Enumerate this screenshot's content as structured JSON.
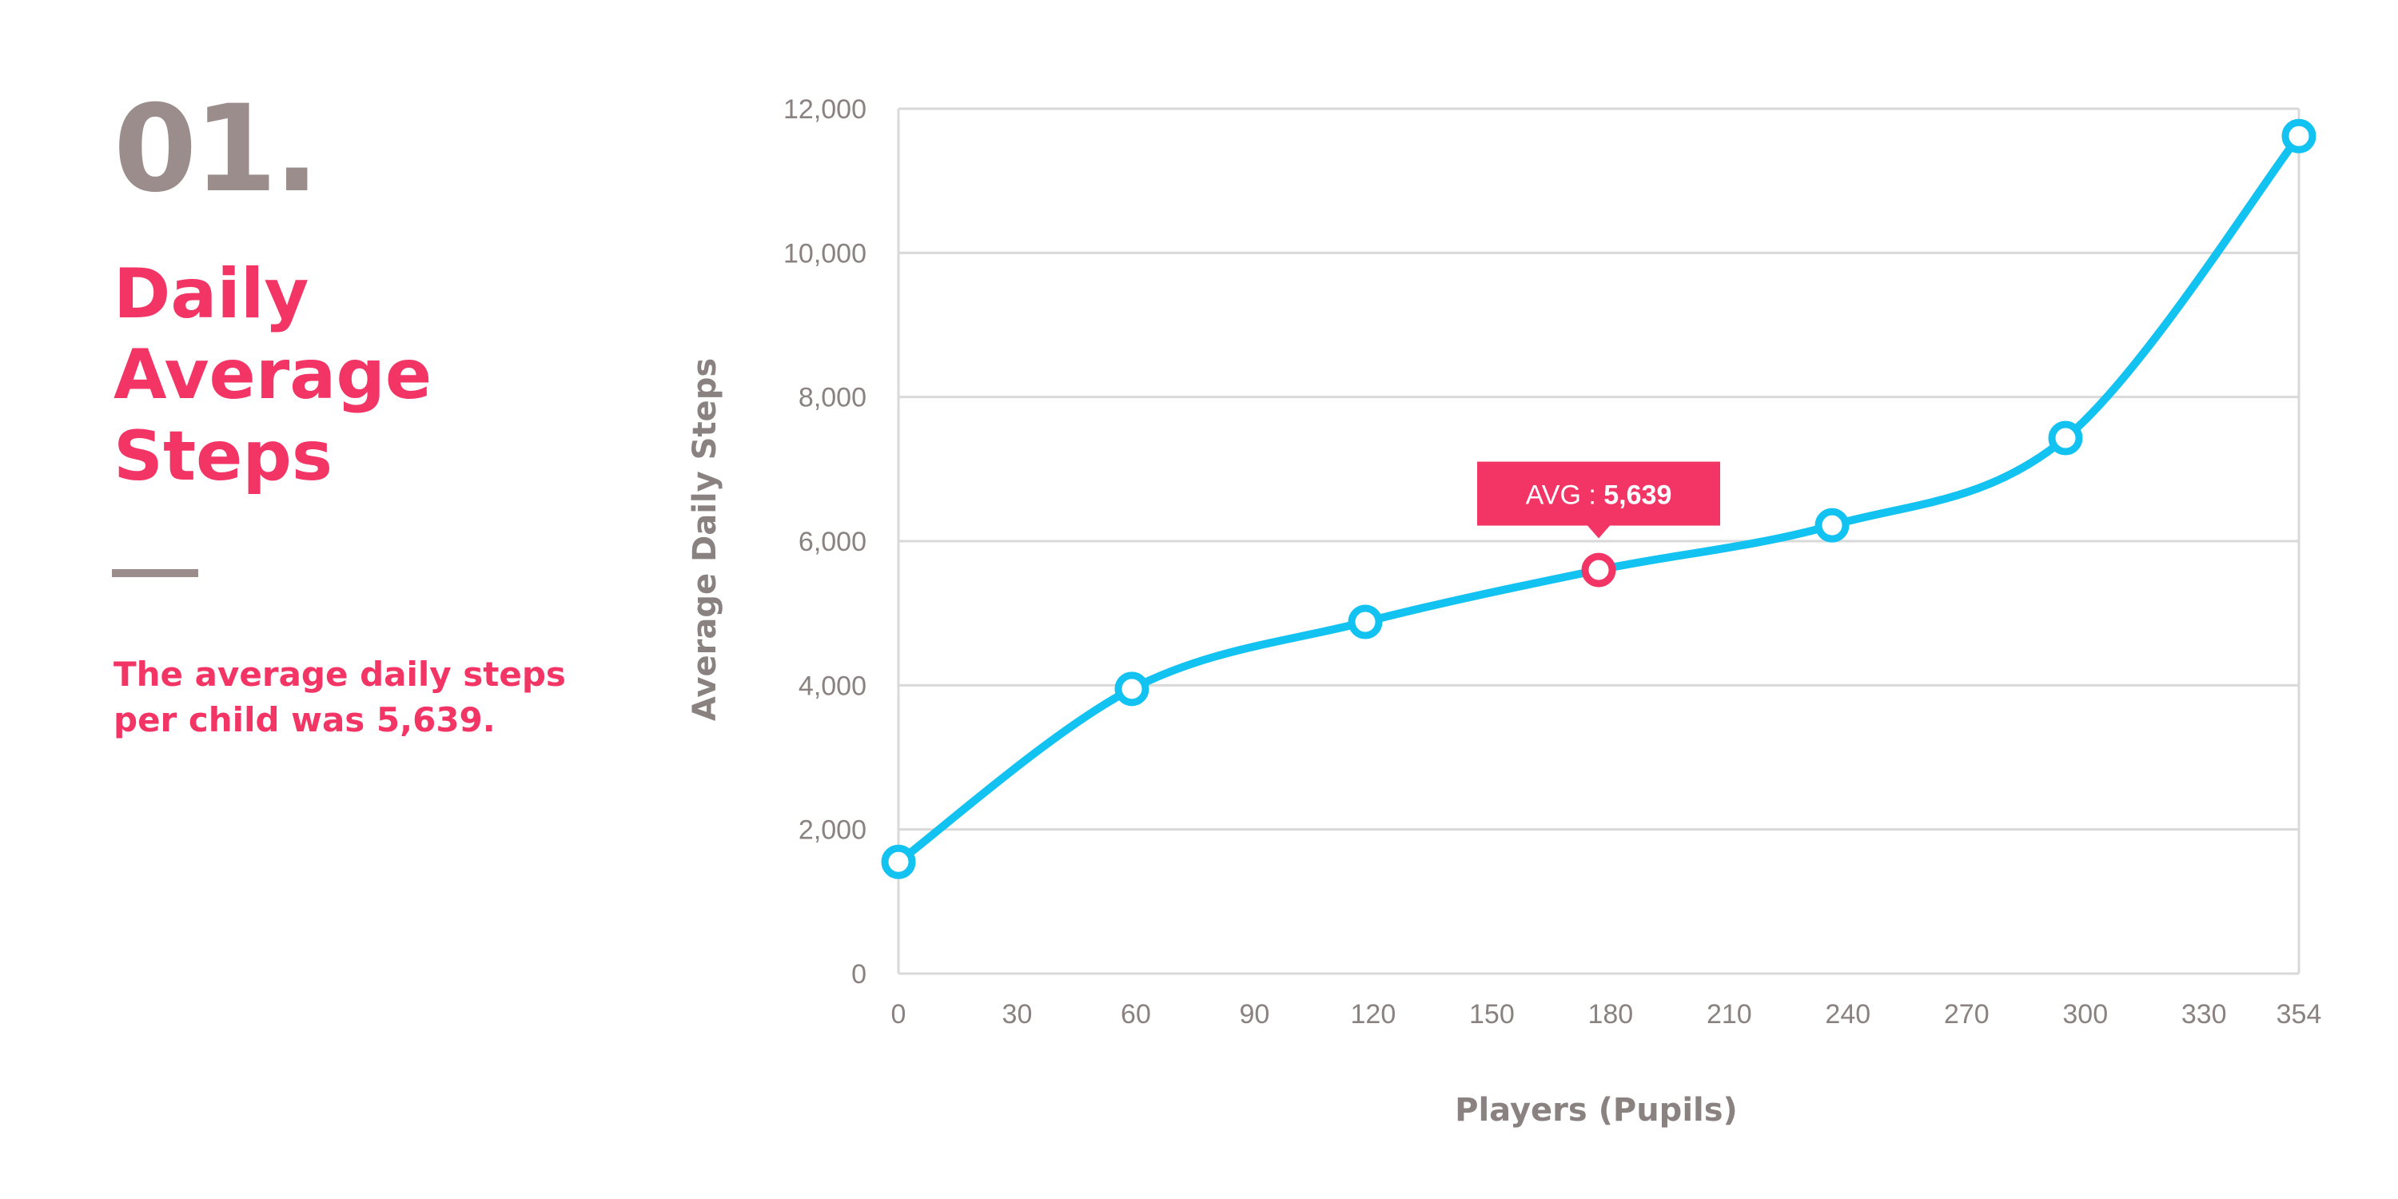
{
  "panel": {
    "number": "01.",
    "title_lines": [
      "Daily",
      "Average",
      "Steps"
    ],
    "description_lines": [
      "The average daily steps",
      "per child was 5,639."
    ]
  },
  "colors": {
    "accent": "#f33566",
    "line": "#12c2f0",
    "muted": "#9a8d8b",
    "grid": "#d9d9d9"
  },
  "chart_data": {
    "type": "line",
    "xlabel": "Players (Pupils)",
    "ylabel": "Average Daily Steps",
    "x_ticks": [
      0,
      30,
      60,
      90,
      120,
      150,
      180,
      210,
      240,
      270,
      300,
      330,
      354
    ],
    "x_tick_labels": [
      "0",
      "30",
      "60",
      "90",
      "120",
      "150",
      "180",
      "210",
      "240",
      "270",
      "300",
      "330",
      "354"
    ],
    "y_ticks": [
      0,
      2000,
      4000,
      6000,
      8000,
      10000,
      12000
    ],
    "y_tick_labels": [
      "0",
      "2,000",
      "4,000",
      "6,000",
      "8,000",
      "10,000",
      "12,000"
    ],
    "xlim": [
      0,
      354
    ],
    "ylim": [
      0,
      12000
    ],
    "grid": "horizontal",
    "series": [
      {
        "x": [
          0,
          59,
          118,
          177,
          236,
          295,
          354
        ],
        "y": [
          1550,
          3950,
          4880,
          5600,
          6220,
          7430,
          11620
        ]
      }
    ],
    "annotation": {
      "x": 177,
      "y": 5639,
      "prefix": "AVG : ",
      "value_text": "5,639"
    }
  }
}
